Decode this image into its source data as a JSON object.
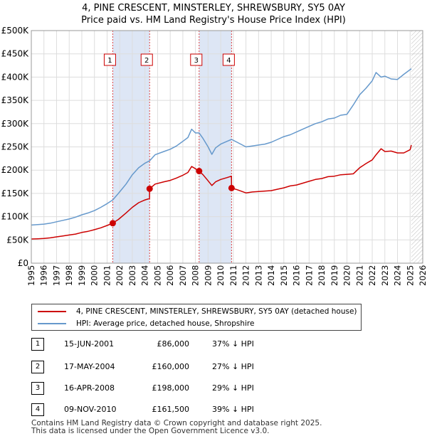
{
  "header": {
    "title_line1": "4, PINE CRESCENT, MINSTERLEY, SHREWSBURY, SY5 0AY",
    "title_line2": "Price paid vs. HM Land Registry's House Price Index (HPI)"
  },
  "colors": {
    "price_line": "#cc0000",
    "hpi_line": "#6699cc",
    "shade": "#dde6f5",
    "grid": "#dddddd",
    "marker_line": "#dd4444"
  },
  "legend": {
    "price_label": "4, PINE CRESCENT, MINSTERLEY, SHREWSBURY, SY5 0AY (detached house)",
    "hpi_label": "HPI: Average price, detached house, Shropshire"
  },
  "transactions": [
    {
      "num": "1",
      "date": "15-JUN-2001",
      "price": "£86,000",
      "hpi": "37% ↓ HPI"
    },
    {
      "num": "2",
      "date": "17-MAY-2004",
      "price": "£160,000",
      "hpi": "27% ↓ HPI"
    },
    {
      "num": "3",
      "date": "16-APR-2008",
      "price": "£198,000",
      "hpi": "29% ↓ HPI"
    },
    {
      "num": "4",
      "date": "09-NOV-2010",
      "price": "£161,500",
      "hpi": "39% ↓ HPI"
    }
  ],
  "footer": {
    "line1": "Contains HM Land Registry data © Crown copyright and database right 2025.",
    "line2": "This data is licensed under the Open Government Licence v3.0."
  },
  "chart_data": {
    "type": "line",
    "title": "Price paid vs. HM Land Registry's House Price Index (HPI)",
    "xlim": [
      1995,
      2026
    ],
    "ylim": [
      0,
      500000
    ],
    "x_ticks": [
      1995,
      1996,
      1997,
      1998,
      1999,
      2000,
      2001,
      2002,
      2003,
      2004,
      2005,
      2006,
      2007,
      2008,
      2009,
      2010,
      2011,
      2012,
      2013,
      2014,
      2015,
      2016,
      2017,
      2018,
      2019,
      2020,
      2021,
      2022,
      2023,
      2024,
      2025,
      2026
    ],
    "y_ticks": [
      0,
      50000,
      100000,
      150000,
      200000,
      250000,
      300000,
      350000,
      400000,
      450000,
      500000
    ],
    "y_tick_labels": [
      "£0",
      "£50K",
      "£100K",
      "£150K",
      "£200K",
      "£250K",
      "£300K",
      "£350K",
      "£400K",
      "£450K",
      "£500K"
    ],
    "shaded_ranges": [
      [
        2001.45,
        2004.37
      ],
      [
        2008.29,
        2010.86
      ]
    ],
    "forecast_start": 2025.1,
    "sales": [
      {
        "label": "1",
        "x": 2001.45,
        "y": 86000
      },
      {
        "label": "2",
        "x": 2004.37,
        "y": 160000
      },
      {
        "label": "3",
        "x": 2008.29,
        "y": 198000
      },
      {
        "label": "4",
        "x": 2010.86,
        "y": 161500
      }
    ],
    "series": [
      {
        "name": "HPI: Average price, detached house, Shropshire",
        "x": [
          1995,
          1995.5,
          1996,
          1996.5,
          1997,
          1997.5,
          1998,
          1998.5,
          1999,
          1999.5,
          2000,
          2000.5,
          2001,
          2001.45,
          2001.9,
          2002.5,
          2003,
          2003.5,
          2004,
          2004.37,
          2004.8,
          2005.5,
          2006,
          2006.5,
          2007,
          2007.4,
          2007.7,
          2008,
          2008.29,
          2008.6,
          2009,
          2009.3,
          2009.6,
          2010,
          2010.5,
          2010.86,
          2011.3,
          2012,
          2012.5,
          2013,
          2013.5,
          2014,
          2014.5,
          2015,
          2015.5,
          2016,
          2016.5,
          2017,
          2017.5,
          2018,
          2018.5,
          2019,
          2019.5,
          2020,
          2020.5,
          2021,
          2021.5,
          2022,
          2022.3,
          2022.7,
          2023,
          2023.5,
          2024,
          2024.5,
          2025,
          2025.1
        ],
        "values": [
          82000,
          83000,
          84000,
          86000,
          89000,
          92000,
          95000,
          99000,
          104000,
          108000,
          113000,
          120000,
          128000,
          136000,
          150000,
          170000,
          190000,
          205000,
          215000,
          220000,
          233000,
          240000,
          245000,
          252000,
          262000,
          270000,
          288000,
          280000,
          280000,
          268000,
          250000,
          234000,
          248000,
          256000,
          262000,
          266000,
          260000,
          250000,
          252000,
          254000,
          256000,
          260000,
          266000,
          272000,
          276000,
          282000,
          288000,
          294000,
          300000,
          304000,
          310000,
          312000,
          318000,
          320000,
          340000,
          362000,
          376000,
          392000,
          410000,
          400000,
          402000,
          396000,
          395000,
          406000,
          416000,
          418000
        ]
      },
      {
        "name": "4, PINE CRESCENT, MINSTERLEY, SHREWSBURY, SY5 0AY (detached house)",
        "x": [
          1995,
          1995.5,
          1996,
          1996.5,
          1997,
          1997.5,
          1998,
          1998.5,
          1999,
          1999.5,
          2000,
          2000.5,
          2001,
          2001.44,
          2001.45,
          2001.9,
          2002.5,
          2003,
          2003.5,
          2004,
          2004.36,
          2004.37,
          2004.8,
          2005.5,
          2006,
          2006.5,
          2007,
          2007.4,
          2007.7,
          2008,
          2008.29,
          2008.6,
          2009,
          2009.3,
          2009.6,
          2010,
          2010.5,
          2010.85,
          2010.86,
          2011.3,
          2012,
          2012.5,
          2013,
          2013.5,
          2014,
          2014.5,
          2015,
          2015.5,
          2016,
          2016.5,
          2017,
          2017.5,
          2018,
          2018.5,
          2019,
          2019.5,
          2020,
          2020.5,
          2021,
          2021.5,
          2022,
          2022.3,
          2022.7,
          2023,
          2023.5,
          2024,
          2024.5,
          2025,
          2025.1
        ],
        "values": [
          52000,
          52500,
          53000,
          54500,
          56500,
          58500,
          60500,
          62500,
          66000,
          68500,
          72000,
          76000,
          81000,
          86000,
          86000,
          94000,
          108000,
          120000,
          130000,
          136000,
          139000,
          160000,
          170000,
          175000,
          178000,
          183000,
          189000,
          195000,
          208000,
          203000,
          198000,
          190000,
          177000,
          167000,
          175000,
          180000,
          184000,
          187000,
          161500,
          158000,
          151000,
          153000,
          154000,
          155000,
          156000,
          159000,
          162000,
          166000,
          168000,
          172000,
          176000,
          180000,
          182000,
          186000,
          187000,
          190000,
          191000,
          192000,
          205000,
          214000,
          222000,
          233000,
          246000,
          240000,
          241000,
          237000,
          237000,
          244000,
          254000
        ]
      }
    ]
  }
}
